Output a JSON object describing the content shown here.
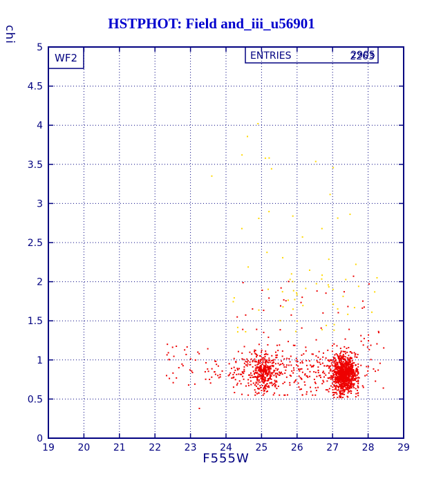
{
  "title": "HSTPHOT: Field and_iii_u56901",
  "axes": {
    "xlabel": "F555W",
    "ylabel": "chi"
  },
  "annotations": {
    "detector_label": "WF2",
    "entries_label": "ENTRIES",
    "entries_values": [
      "2905",
      "2263"
    ]
  },
  "chart_data": {
    "type": "scatter",
    "title": "HSTPHOT: Field and_iii_u56901",
    "xlabel": "F555W",
    "ylabel": "chi",
    "xlim": [
      19,
      29
    ],
    "ylim": [
      0,
      5
    ],
    "xticks": [
      19,
      20,
      21,
      22,
      23,
      24,
      25,
      26,
      27,
      28,
      29
    ],
    "yticks": [
      0,
      0.5,
      1,
      1.5,
      2,
      2.5,
      3,
      3.5,
      4,
      4.5,
      5
    ],
    "grid": true,
    "legend": "none",
    "colors": {
      "frame": "#000080",
      "grid": "#000080",
      "title": "#0000cd",
      "labels": "#000080",
      "red_points": "#ee0000",
      "yellow_points": "#ffd800"
    },
    "description": "chi (fit quality) versus F555W magnitude; dense red locus of good stars near chi~0.8 concentrated at faint magnitudes 25-27.7, sparse yellow flagged detections at chi 1.3-4.1",
    "series": [
      {
        "name": "yellow-flagged-detections",
        "color": "#ffd800",
        "clusters": [
          {
            "count": 40,
            "x": {
              "dist": "uniform",
              "min": 24.2,
              "max": 28.2
            },
            "y": {
              "dist": "uniform",
              "min": 1.35,
              "max": 2.05
            }
          },
          {
            "count": 16,
            "x": {
              "dist": "uniform",
              "min": 24.4,
              "max": 28.0
            },
            "y": {
              "dist": "uniform",
              "min": 2.05,
              "max": 3.1
            }
          },
          {
            "count": 7,
            "x": {
              "dist": "uniform",
              "min": 24.4,
              "max": 27.3
            },
            "y": {
              "dist": "uniform",
              "min": 3.1,
              "max": 3.9
            }
          }
        ],
        "points": [
          [
            24.9,
            4.02
          ],
          [
            24.45,
            3.62
          ],
          [
            28.25,
            2.05
          ],
          [
            23.6,
            3.35
          ]
        ]
      },
      {
        "name": "red-good-stars",
        "color": "#ee0000",
        "clusters": [
          {
            "count": 950,
            "x": {
              "dist": "normal",
              "mean": 27.33,
              "sd": 0.17,
              "min": 26.5,
              "max": 27.72
            },
            "y": {
              "dist": "normal",
              "mean": 0.82,
              "sd": 0.13,
              "min": 0.52,
              "max": 1.45
            }
          },
          {
            "count": 270,
            "x": {
              "dist": "normal",
              "mean": 25.05,
              "sd": 0.17,
              "min": 24.55,
              "max": 25.6
            },
            "y": {
              "dist": "normal",
              "mean": 0.83,
              "sd": 0.11,
              "min": 0.55,
              "max": 1.3
            }
          },
          {
            "count": 330,
            "x": {
              "dist": "uniform",
              "min": 24.2,
              "max": 27.1
            },
            "y": {
              "dist": "normal",
              "mean": 0.87,
              "sd": 0.16,
              "min": 0.55,
              "max": 1.5
            }
          },
          {
            "count": 55,
            "x": {
              "dist": "uniform",
              "min": 22.3,
              "max": 24.2
            },
            "y": {
              "dist": "normal",
              "mean": 0.86,
              "sd": 0.13,
              "min": 0.6,
              "max": 1.25
            }
          },
          {
            "count": 28,
            "x": {
              "dist": "uniform",
              "min": 27.75,
              "max": 28.45
            },
            "y": {
              "dist": "uniform",
              "min": 0.6,
              "max": 1.4
            }
          },
          {
            "count": 32,
            "x": {
              "dist": "uniform",
              "min": 24.3,
              "max": 28.1
            },
            "y": {
              "dist": "uniform",
              "min": 1.3,
              "max": 2.1
            }
          }
        ],
        "points": [
          [
            23.25,
            0.38
          ],
          [
            22.35,
            1.2
          ],
          [
            28.3,
            1.35
          ]
        ]
      }
    ]
  }
}
